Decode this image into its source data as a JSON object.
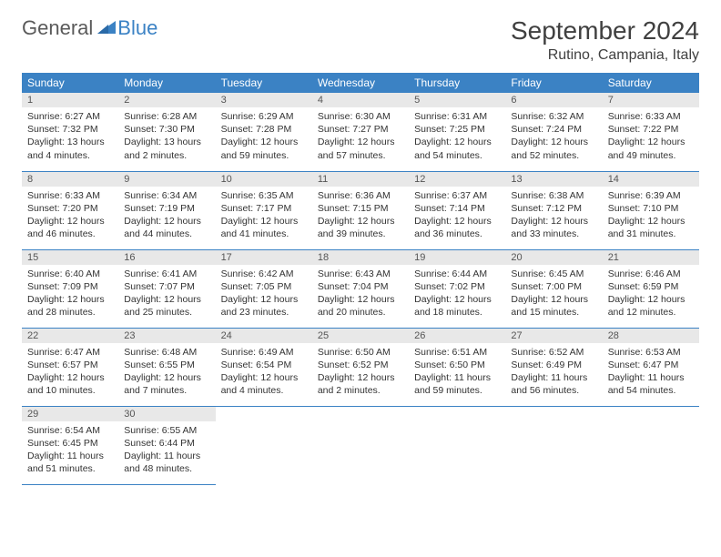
{
  "logo": {
    "part1": "General",
    "part2": "Blue"
  },
  "title": "September 2024",
  "location": "Rutino, Campania, Italy",
  "colors": {
    "header_bg": "#3b82c4",
    "header_text": "#ffffff",
    "daynum_bg": "#e8e8e8",
    "border": "#3b82c4",
    "text": "#333333",
    "logo_gray": "#5a5a5a",
    "logo_blue": "#3b82c4",
    "page_bg": "#ffffff"
  },
  "weekdays": [
    "Sunday",
    "Monday",
    "Tuesday",
    "Wednesday",
    "Thursday",
    "Friday",
    "Saturday"
  ],
  "days": [
    {
      "n": 1,
      "sunrise": "6:27 AM",
      "sunset": "7:32 PM",
      "daylight": "13 hours and 4 minutes."
    },
    {
      "n": 2,
      "sunrise": "6:28 AM",
      "sunset": "7:30 PM",
      "daylight": "13 hours and 2 minutes."
    },
    {
      "n": 3,
      "sunrise": "6:29 AM",
      "sunset": "7:28 PM",
      "daylight": "12 hours and 59 minutes."
    },
    {
      "n": 4,
      "sunrise": "6:30 AM",
      "sunset": "7:27 PM",
      "daylight": "12 hours and 57 minutes."
    },
    {
      "n": 5,
      "sunrise": "6:31 AM",
      "sunset": "7:25 PM",
      "daylight": "12 hours and 54 minutes."
    },
    {
      "n": 6,
      "sunrise": "6:32 AM",
      "sunset": "7:24 PM",
      "daylight": "12 hours and 52 minutes."
    },
    {
      "n": 7,
      "sunrise": "6:33 AM",
      "sunset": "7:22 PM",
      "daylight": "12 hours and 49 minutes."
    },
    {
      "n": 8,
      "sunrise": "6:33 AM",
      "sunset": "7:20 PM",
      "daylight": "12 hours and 46 minutes."
    },
    {
      "n": 9,
      "sunrise": "6:34 AM",
      "sunset": "7:19 PM",
      "daylight": "12 hours and 44 minutes."
    },
    {
      "n": 10,
      "sunrise": "6:35 AM",
      "sunset": "7:17 PM",
      "daylight": "12 hours and 41 minutes."
    },
    {
      "n": 11,
      "sunrise": "6:36 AM",
      "sunset": "7:15 PM",
      "daylight": "12 hours and 39 minutes."
    },
    {
      "n": 12,
      "sunrise": "6:37 AM",
      "sunset": "7:14 PM",
      "daylight": "12 hours and 36 minutes."
    },
    {
      "n": 13,
      "sunrise": "6:38 AM",
      "sunset": "7:12 PM",
      "daylight": "12 hours and 33 minutes."
    },
    {
      "n": 14,
      "sunrise": "6:39 AM",
      "sunset": "7:10 PM",
      "daylight": "12 hours and 31 minutes."
    },
    {
      "n": 15,
      "sunrise": "6:40 AM",
      "sunset": "7:09 PM",
      "daylight": "12 hours and 28 minutes."
    },
    {
      "n": 16,
      "sunrise": "6:41 AM",
      "sunset": "7:07 PM",
      "daylight": "12 hours and 25 minutes."
    },
    {
      "n": 17,
      "sunrise": "6:42 AM",
      "sunset": "7:05 PM",
      "daylight": "12 hours and 23 minutes."
    },
    {
      "n": 18,
      "sunrise": "6:43 AM",
      "sunset": "7:04 PM",
      "daylight": "12 hours and 20 minutes."
    },
    {
      "n": 19,
      "sunrise": "6:44 AM",
      "sunset": "7:02 PM",
      "daylight": "12 hours and 18 minutes."
    },
    {
      "n": 20,
      "sunrise": "6:45 AM",
      "sunset": "7:00 PM",
      "daylight": "12 hours and 15 minutes."
    },
    {
      "n": 21,
      "sunrise": "6:46 AM",
      "sunset": "6:59 PM",
      "daylight": "12 hours and 12 minutes."
    },
    {
      "n": 22,
      "sunrise": "6:47 AM",
      "sunset": "6:57 PM",
      "daylight": "12 hours and 10 minutes."
    },
    {
      "n": 23,
      "sunrise": "6:48 AM",
      "sunset": "6:55 PM",
      "daylight": "12 hours and 7 minutes."
    },
    {
      "n": 24,
      "sunrise": "6:49 AM",
      "sunset": "6:54 PM",
      "daylight": "12 hours and 4 minutes."
    },
    {
      "n": 25,
      "sunrise": "6:50 AM",
      "sunset": "6:52 PM",
      "daylight": "12 hours and 2 minutes."
    },
    {
      "n": 26,
      "sunrise": "6:51 AM",
      "sunset": "6:50 PM",
      "daylight": "11 hours and 59 minutes."
    },
    {
      "n": 27,
      "sunrise": "6:52 AM",
      "sunset": "6:49 PM",
      "daylight": "11 hours and 56 minutes."
    },
    {
      "n": 28,
      "sunrise": "6:53 AM",
      "sunset": "6:47 PM",
      "daylight": "11 hours and 54 minutes."
    },
    {
      "n": 29,
      "sunrise": "6:54 AM",
      "sunset": "6:45 PM",
      "daylight": "11 hours and 51 minutes."
    },
    {
      "n": 30,
      "sunrise": "6:55 AM",
      "sunset": "6:44 PM",
      "daylight": "11 hours and 48 minutes."
    }
  ],
  "labels": {
    "sunrise": "Sunrise:",
    "sunset": "Sunset:",
    "daylight": "Daylight:"
  },
  "layout": {
    "start_weekday": 0,
    "columns": 7,
    "rows": 5
  }
}
